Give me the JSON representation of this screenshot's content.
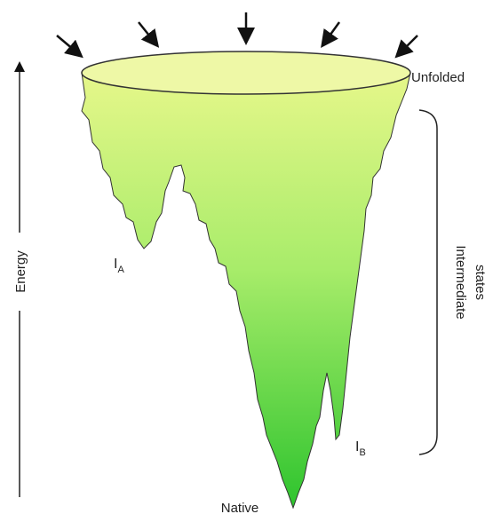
{
  "labels": {
    "unfolded": "Unfolded",
    "intermediate": [
      "Intermediate",
      "states"
    ],
    "energy": "Energy",
    "ia": {
      "main": "I",
      "sub": "A"
    },
    "ib": {
      "main": "I",
      "sub": "B"
    },
    "native": "Native"
  }
}
